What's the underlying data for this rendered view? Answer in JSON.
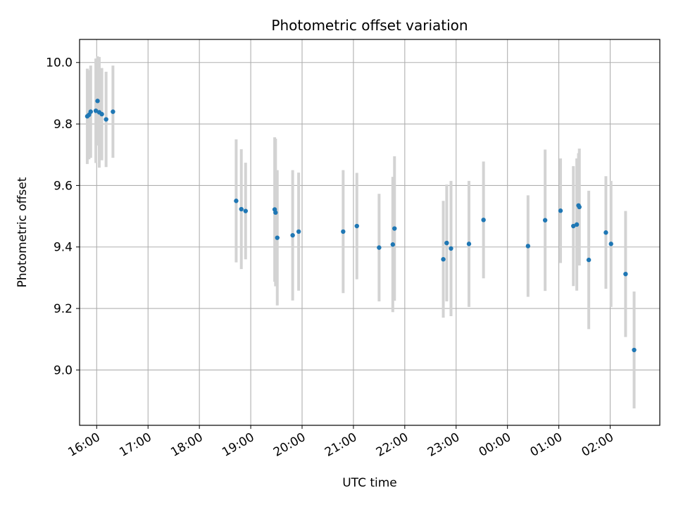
{
  "chart_data": {
    "type": "scatter",
    "title": "Photometric offset variation",
    "xlabel": "UTC time",
    "ylabel": "Photometric offset",
    "grid": true,
    "xlim": [
      "15:40",
      "02:58"
    ],
    "ylim": [
      8.82,
      10.075
    ],
    "x_ticks": [
      "16:00",
      "17:00",
      "18:00",
      "19:00",
      "20:00",
      "21:00",
      "22:00",
      "23:00",
      "00:00",
      "01:00",
      "02:00"
    ],
    "y_ticks": [
      "9.0",
      "9.2",
      "9.4",
      "9.6",
      "9.8",
      "10.0"
    ],
    "point_color": "#1f77b4",
    "errorbar_color": "#d3d3d3",
    "points": [
      {
        "x": "15:49",
        "y": 9.825,
        "err": 0.155
      },
      {
        "x": "15:51",
        "y": 9.83,
        "err": 0.145
      },
      {
        "x": "15:53",
        "y": 9.84,
        "err": 0.15
      },
      {
        "x": "15:59",
        "y": 9.843,
        "err": 0.17
      },
      {
        "x": "16:01",
        "y": 9.875,
        "err": 0.145
      },
      {
        "x": "16:03",
        "y": 9.838,
        "err": 0.18
      },
      {
        "x": "16:06",
        "y": 9.832,
        "err": 0.15
      },
      {
        "x": "16:11",
        "y": 9.815,
        "err": 0.155
      },
      {
        "x": "16:19",
        "y": 9.84,
        "err": 0.15
      },
      {
        "x": "18:43",
        "y": 9.55,
        "err": 0.2
      },
      {
        "x": "18:49",
        "y": 9.523,
        "err": 0.195
      },
      {
        "x": "18:54",
        "y": 9.517,
        "err": 0.157
      },
      {
        "x": "19:28",
        "y": 9.522,
        "err": 0.235
      },
      {
        "x": "19:29",
        "y": 9.512,
        "err": 0.24
      },
      {
        "x": "19:31",
        "y": 9.43,
        "err": 0.22
      },
      {
        "x": "19:49",
        "y": 9.438,
        "err": 0.212
      },
      {
        "x": "19:56",
        "y": 9.45,
        "err": 0.192
      },
      {
        "x": "20:48",
        "y": 9.45,
        "err": 0.2
      },
      {
        "x": "21:04",
        "y": 9.468,
        "err": 0.173
      },
      {
        "x": "21:30",
        "y": 9.398,
        "err": 0.175
      },
      {
        "x": "21:46",
        "y": 9.408,
        "err": 0.22
      },
      {
        "x": "21:48",
        "y": 9.46,
        "err": 0.235
      },
      {
        "x": "22:45",
        "y": 9.36,
        "err": 0.19
      },
      {
        "x": "22:49",
        "y": 9.413,
        "err": 0.19
      },
      {
        "x": "22:54",
        "y": 9.395,
        "err": 0.22
      },
      {
        "x": "23:15",
        "y": 9.41,
        "err": 0.205
      },
      {
        "x": "23:32",
        "y": 9.488,
        "err": 0.19
      },
      {
        "x": "00:24",
        "y": 9.403,
        "err": 0.165
      },
      {
        "x": "00:44",
        "y": 9.487,
        "err": 0.23
      },
      {
        "x": "01:02",
        "y": 9.518,
        "err": 0.17
      },
      {
        "x": "01:17",
        "y": 9.468,
        "err": 0.195
      },
      {
        "x": "01:21",
        "y": 9.473,
        "err": 0.215
      },
      {
        "x": "01:23",
        "y": 9.535,
        "err": 0.17
      },
      {
        "x": "01:24",
        "y": 9.53,
        "err": 0.19
      },
      {
        "x": "01:35",
        "y": 9.358,
        "err": 0.225
      },
      {
        "x": "01:55",
        "y": 9.447,
        "err": 0.183
      },
      {
        "x": "02:01",
        "y": 9.41,
        "err": 0.205
      },
      {
        "x": "02:18",
        "y": 9.312,
        "err": 0.205
      },
      {
        "x": "02:28",
        "y": 9.065,
        "err": 0.19
      }
    ]
  }
}
